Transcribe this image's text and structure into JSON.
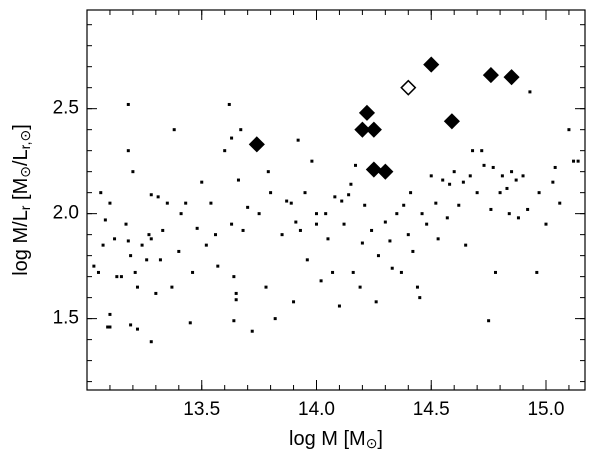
{
  "chart_data": {
    "type": "scatter",
    "xlabel_parts": [
      "log M [M",
      "⊙",
      "]"
    ],
    "ylabel_parts": [
      "log M/L",
      "r",
      " [M",
      "⊙",
      "/L",
      "r,⊙",
      "]"
    ],
    "xlim": [
      13.0,
      15.17
    ],
    "ylim": [
      1.16,
      2.97
    ],
    "xticks": [
      13.5,
      {
        "value": 14,
        "label": "14.0"
      },
      14.5,
      {
        "value": 15,
        "label": "15.0"
      }
    ],
    "yticks": [
      1.5,
      {
        "value": 2,
        "label": "2.0"
      },
      2.5
    ],
    "xminor_step": 0.1,
    "yminor_step": 0.1,
    "series": [
      {
        "marker": "square",
        "color": "#000000",
        "filled": true,
        "x": [
          13.03,
          13.05,
          13.06,
          13.07,
          13.08,
          13.09,
          13.1,
          13.1,
          13.1,
          13.12,
          13.13,
          13.15,
          13.17,
          13.18,
          13.18,
          13.18,
          13.19,
          13.19,
          13.2,
          13.21,
          13.22,
          13.22,
          13.24,
          13.26,
          13.27,
          13.28,
          13.28,
          13.28,
          13.3,
          13.31,
          13.32,
          13.33,
          13.35,
          13.37,
          13.38,
          13.4,
          13.41,
          13.43,
          13.45,
          13.46,
          13.48,
          13.5,
          13.52,
          13.54,
          13.56,
          13.57,
          13.6,
          13.62,
          13.63,
          13.63,
          13.64,
          13.64,
          13.65,
          13.65,
          13.66,
          13.67,
          13.68,
          13.7,
          13.72,
          13.75,
          13.78,
          13.79,
          13.8,
          13.82,
          13.85,
          13.87,
          13.89,
          13.9,
          13.91,
          13.92,
          13.93,
          13.95,
          13.96,
          13.98,
          14.0,
          14.0,
          14.02,
          14.04,
          14.05,
          14.07,
          14.08,
          14.1,
          14.11,
          14.12,
          14.14,
          14.15,
          14.16,
          14.17,
          14.19,
          14.2,
          14.21,
          14.24,
          14.26,
          14.27,
          14.3,
          14.32,
          14.33,
          14.35,
          14.37,
          14.38,
          14.4,
          14.41,
          14.42,
          14.44,
          14.45,
          14.46,
          14.48,
          14.5,
          14.52,
          14.53,
          14.55,
          14.57,
          14.58,
          14.6,
          14.62,
          14.64,
          14.65,
          14.67,
          14.68,
          14.7,
          14.72,
          14.73,
          14.75,
          14.76,
          14.77,
          14.78,
          14.8,
          14.81,
          14.83,
          14.84,
          14.85,
          14.87,
          14.88,
          14.9,
          14.92,
          14.93,
          14.96,
          14.97,
          15.0,
          15.03,
          15.04,
          15.06,
          15.1,
          15.12,
          15.14
        ],
        "values": [
          1.75,
          1.72,
          2.1,
          1.85,
          1.97,
          1.46,
          1.46,
          2.05,
          1.52,
          1.88,
          1.7,
          1.7,
          1.95,
          2.3,
          2.52,
          1.87,
          1.8,
          1.47,
          2.2,
          1.72,
          1.65,
          1.45,
          1.85,
          1.78,
          1.9,
          1.39,
          1.88,
          2.09,
          1.62,
          2.08,
          1.78,
          1.92,
          2.05,
          1.65,
          2.4,
          1.82,
          2.0,
          2.05,
          1.48,
          1.72,
          1.93,
          2.15,
          1.85,
          2.05,
          1.9,
          1.75,
          2.3,
          2.52,
          2.36,
          1.95,
          1.49,
          1.7,
          1.62,
          1.59,
          2.16,
          2.4,
          1.92,
          2.03,
          1.44,
          2.0,
          1.65,
          2.2,
          2.1,
          1.5,
          1.9,
          2.06,
          2.05,
          1.58,
          1.96,
          2.35,
          1.92,
          2.1,
          1.78,
          2.25,
          1.95,
          2.0,
          1.68,
          2.0,
          1.88,
          1.72,
          2.08,
          1.56,
          2.06,
          1.95,
          2.09,
          2.14,
          1.72,
          2.23,
          1.65,
          1.86,
          2.04,
          1.92,
          1.58,
          1.8,
          1.96,
          1.87,
          1.74,
          2.0,
          1.72,
          2.04,
          1.9,
          2.1,
          1.82,
          1.65,
          1.6,
          2.0,
          1.95,
          2.18,
          2.05,
          1.88,
          2.16,
          1.98,
          2.14,
          2.2,
          2.04,
          2.15,
          1.85,
          2.18,
          2.3,
          2.1,
          2.3,
          2.23,
          1.49,
          2.02,
          2.22,
          1.72,
          2.1,
          2.18,
          2.12,
          2.0,
          2.2,
          2.16,
          1.98,
          2.18,
          2.02,
          2.58,
          1.72,
          2.1,
          1.95,
          2.15,
          2.22,
          2.05,
          2.4,
          2.25,
          2.25
        ]
      },
      {
        "marker": "diamond",
        "color": "#000000",
        "filled": true,
        "x": [
          13.74,
          14.22,
          14.2,
          14.25,
          14.25,
          14.3,
          14.5,
          14.59,
          14.76,
          14.85
        ],
        "values": [
          2.33,
          2.48,
          2.4,
          2.4,
          2.21,
          2.2,
          2.71,
          2.44,
          2.66,
          2.65
        ]
      },
      {
        "marker": "diamond",
        "color": "#000000",
        "filled": false,
        "x": [
          14.4
        ],
        "values": [
          2.6
        ]
      }
    ]
  }
}
